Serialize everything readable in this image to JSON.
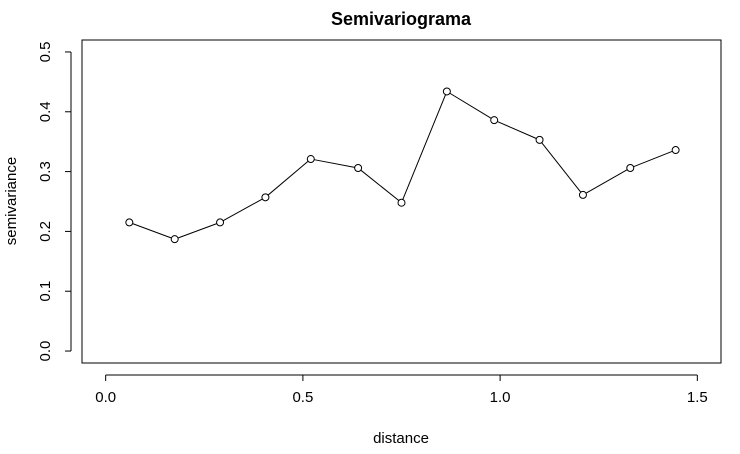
{
  "chart_data": {
    "type": "line",
    "title": "Semivariograma",
    "xlabel": "distance",
    "ylabel": "semivariance",
    "xlim": [
      -0.06,
      1.56
    ],
    "ylim": [
      -0.02,
      0.52
    ],
    "xticks": [
      0.0,
      0.5,
      1.0,
      1.5
    ],
    "xtick_labels": [
      "0.0",
      "0.5",
      "1.0",
      "1.5"
    ],
    "yticks": [
      0.0,
      0.1,
      0.2,
      0.3,
      0.4,
      0.5
    ],
    "ytick_labels": [
      "0.0",
      "0.1",
      "0.2",
      "0.3",
      "0.4",
      "0.5"
    ],
    "grid": false,
    "legend": "none",
    "series": [
      {
        "x": [
          0.06,
          0.175,
          0.29,
          0.405,
          0.52,
          0.64,
          0.75,
          0.865,
          0.985,
          1.1,
          1.21,
          1.33,
          1.445
        ],
        "y": [
          0.215,
          0.187,
          0.215,
          0.257,
          0.321,
          0.306,
          0.248,
          0.434,
          0.386,
          0.353,
          0.261,
          0.306,
          0.336
        ],
        "color": "#000000",
        "marker": "open-circle",
        "line": "solid"
      }
    ]
  }
}
